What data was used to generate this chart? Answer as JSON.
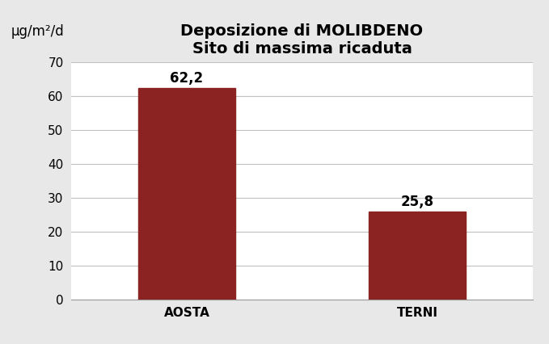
{
  "categories": [
    "AOSTA",
    "TERNI"
  ],
  "values": [
    62.2,
    25.8
  ],
  "bar_color": "#8B2323",
  "title_line1": "Deposizione di MOLIBDENO",
  "title_line2": "Sito di massima ricaduta",
  "ylabel": "μg/m²/d",
  "ylim": [
    0,
    70
  ],
  "yticks": [
    0,
    10,
    20,
    30,
    40,
    50,
    60,
    70
  ],
  "title_fontsize": 14,
  "tick_fontsize": 11,
  "label_fontsize": 12,
  "value_fontsize": 12,
  "background_color": "#E8E8E8",
  "plot_bg_color": "#FFFFFF",
  "grid_color": "#C0C0C0"
}
